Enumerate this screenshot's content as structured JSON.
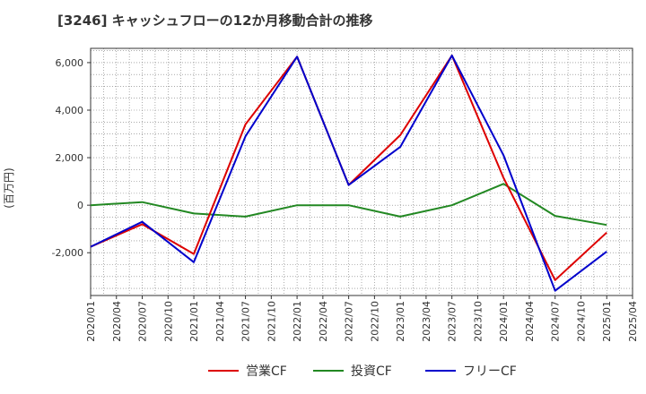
{
  "chart_data": {
    "type": "line",
    "title": "[3246]  キャッシュフローの12か月移動合計の推移",
    "ylabel": "(百万円)",
    "xlabel": "",
    "ylim": [
      -3800,
      6600
    ],
    "yticks": [
      6000,
      4000,
      2000,
      0,
      -2000
    ],
    "ytick_labels": [
      "6,000",
      "4,000",
      "2,000",
      "0",
      "-2,000"
    ],
    "x_ticks": [
      "2020/01",
      "2020/04",
      "2020/07",
      "2020/10",
      "2021/01",
      "2021/04",
      "2021/07",
      "2021/10",
      "2022/01",
      "2022/04",
      "2022/07",
      "2022/10",
      "2023/01",
      "2023/04",
      "2023/07",
      "2023/10",
      "2024/01",
      "2024/04",
      "2024/07",
      "2024/10",
      "2025/01",
      "2025/04"
    ],
    "grid": true,
    "legend_position": "bottom",
    "series": [
      {
        "name": "営業CF",
        "color": "#dd0000",
        "points": [
          [
            "2020/01",
            -1750
          ],
          [
            "2020/07",
            -800
          ],
          [
            "2021/01",
            -2050
          ],
          [
            "2021/07",
            3400
          ],
          [
            "2022/01",
            6250
          ],
          [
            "2022/07",
            850
          ],
          [
            "2023/01",
            2950
          ],
          [
            "2023/07",
            6300
          ],
          [
            "2024/01",
            1150
          ],
          [
            "2024/07",
            -3150
          ],
          [
            "2025/01",
            -1150
          ]
        ]
      },
      {
        "name": "投資CF",
        "color": "#228822",
        "points": [
          [
            "2020/01",
            0
          ],
          [
            "2020/07",
            130
          ],
          [
            "2021/01",
            -350
          ],
          [
            "2021/07",
            -480
          ],
          [
            "2022/01",
            0
          ],
          [
            "2022/07",
            0
          ],
          [
            "2023/01",
            -480
          ],
          [
            "2023/07",
            0
          ],
          [
            "2024/01",
            900
          ],
          [
            "2024/07",
            -450
          ],
          [
            "2025/01",
            -830
          ]
        ]
      },
      {
        "name": "フリーCF",
        "color": "#0000cc",
        "points": [
          [
            "2020/01",
            -1750
          ],
          [
            "2020/07",
            -700
          ],
          [
            "2021/01",
            -2400
          ],
          [
            "2021/07",
            2900
          ],
          [
            "2022/01",
            6250
          ],
          [
            "2022/07",
            850
          ],
          [
            "2023/01",
            2450
          ],
          [
            "2023/07",
            6300
          ],
          [
            "2024/01",
            2100
          ],
          [
            "2024/07",
            -3600
          ],
          [
            "2025/01",
            -1950
          ]
        ]
      }
    ]
  }
}
